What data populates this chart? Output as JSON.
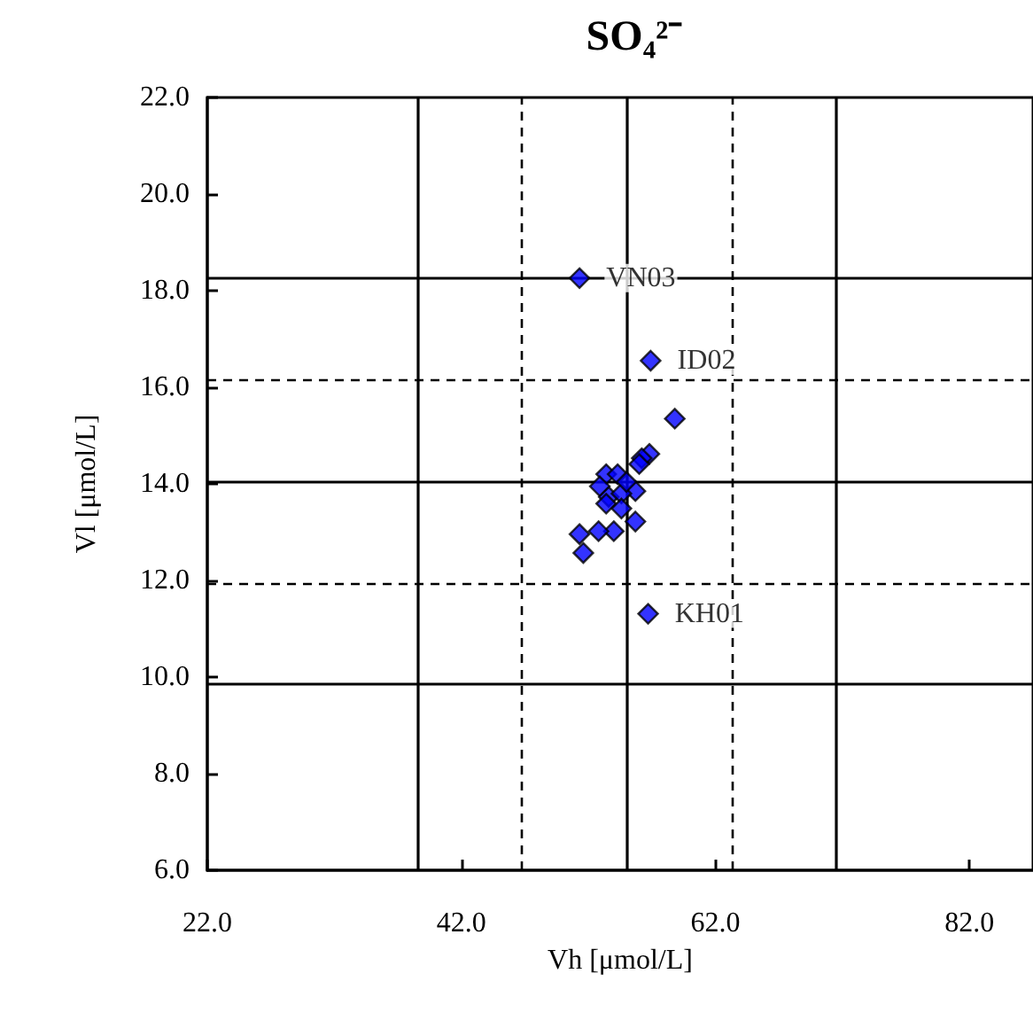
{
  "chart_data": {
    "type": "scatter",
    "title": "SO₄²⁻",
    "xlabel": "Vh [μmol/L]",
    "ylabel": "Vl [μmol/L]",
    "x": [
      51.3,
      56.9,
      58.8,
      56.7,
      56.8,
      56.2,
      56.0,
      53.4,
      54.3,
      52.9,
      55.7,
      53.6,
      54.6,
      55.0,
      53.4,
      54.6,
      55.7,
      54.0,
      52.8,
      51.3,
      51.6
    ],
    "values": [
      18.26,
      16.55,
      15.35,
      11.31,
      14.62,
      14.53,
      14.41,
      14.2,
      14.2,
      13.95,
      13.85,
      13.73,
      13.8,
      14.04,
      13.59,
      13.49,
      13.22,
      13.02,
      13.02,
      12.96,
      12.57
    ],
    "value_labels": [
      "VN03",
      "ID02",
      null,
      "KH01",
      null,
      null,
      null,
      null,
      null,
      null,
      null,
      null,
      null,
      null,
      null,
      null,
      null,
      null,
      null,
      null,
      null
    ],
    "color": "#0000ff",
    "marker": "diamond",
    "grid": false,
    "xlim": [
      22,
      87
    ],
    "xticks": [
      {
        "value": 22,
        "label": "22.0"
      },
      {
        "value": 42,
        "label": "42.0"
      },
      {
        "value": 62,
        "label": "62.0"
      },
      {
        "value": 82,
        "label": "82.0"
      }
    ],
    "ylim": [
      6,
      22
    ],
    "yticks": [
      {
        "value": 6,
        "label": "6.0"
      },
      {
        "value": 8,
        "label": "8.0"
      },
      {
        "value": 10,
        "label": "10.0"
      },
      {
        "value": 12,
        "label": "12.0"
      },
      {
        "value": 14,
        "label": "14.0"
      },
      {
        "value": 16,
        "label": "16.0"
      },
      {
        "value": 18,
        "label": "18.0"
      },
      {
        "value": 20,
        "label": "20.0"
      },
      {
        "value": 22,
        "label": "22.0"
      }
    ],
    "ref_lines": [
      {
        "axis": "x",
        "value": 55.0,
        "line_style": "solid"
      },
      {
        "axis": "x",
        "value": 46.7,
        "line_style": "dashed"
      },
      {
        "axis": "x",
        "value": 63.3,
        "line_style": "dashed"
      },
      {
        "axis": "x",
        "value": 38.5,
        "line_style": "solid"
      },
      {
        "axis": "x",
        "value": 71.5,
        "line_style": "solid"
      },
      {
        "axis": "y",
        "value": 14.05,
        "line_style": "solid"
      },
      {
        "axis": "y",
        "value": 16.15,
        "line_style": "dashed"
      },
      {
        "axis": "y",
        "value": 11.95,
        "line_style": "dashed"
      },
      {
        "axis": "y",
        "value": 18.25,
        "line_style": "solid"
      },
      {
        "axis": "y",
        "value": 9.85,
        "line_style": "solid"
      }
    ]
  }
}
